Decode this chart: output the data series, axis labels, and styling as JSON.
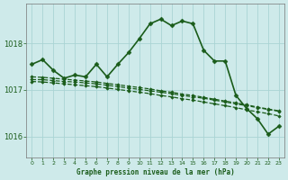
{
  "xlabel": "Graphe pression niveau de la mer (hPa)",
  "bg_color": "#ceeaea",
  "grid_color": "#aad4d4",
  "line_color": "#1a5c1a",
  "xlim": [
    -0.5,
    23.5
  ],
  "ylim": [
    1015.55,
    1018.85
  ],
  "yticks": [
    1016,
    1017,
    1018
  ],
  "xticks": [
    0,
    1,
    2,
    3,
    4,
    5,
    6,
    7,
    8,
    9,
    10,
    11,
    12,
    13,
    14,
    15,
    16,
    17,
    18,
    19,
    20,
    21,
    22,
    23
  ],
  "series": [
    {
      "x": [
        0,
        1,
        2,
        3,
        4,
        5,
        6,
        7,
        8,
        9,
        10,
        11,
        12,
        13,
        14,
        15,
        16,
        17,
        18,
        19,
        20,
        21,
        22,
        23
      ],
      "y": [
        1017.55,
        1017.65,
        1017.42,
        1017.25,
        1017.32,
        1017.28,
        1017.55,
        1017.28,
        1017.55,
        1017.8,
        1018.1,
        1018.42,
        1018.52,
        1018.38,
        1018.48,
        1018.42,
        1017.85,
        1017.62,
        1017.62,
        1016.88,
        1016.6,
        1016.38,
        1016.05,
        1016.22
      ],
      "marker": "D",
      "markersize": 2.5,
      "linewidth": 1.2,
      "linestyle": "-",
      "zorder": 5
    },
    {
      "x": [
        0,
        1,
        2,
        3,
        4,
        5,
        6,
        7,
        8,
        9,
        10,
        11,
        12,
        13,
        14,
        15,
        16,
        17,
        18,
        19,
        20,
        21,
        22,
        23
      ],
      "y": [
        1017.22,
        1017.22,
        1017.2,
        1017.18,
        1017.17,
        1017.15,
        1017.13,
        1017.1,
        1017.07,
        1017.04,
        1017.01,
        1016.98,
        1016.95,
        1016.92,
        1016.88,
        1016.85,
        1016.82,
        1016.78,
        1016.74,
        1016.7,
        1016.66,
        1016.62,
        1016.58,
        1016.54
      ],
      "marker": "D",
      "markersize": 1.8,
      "linewidth": 0.9,
      "linestyle": "--",
      "zorder": 3
    },
    {
      "x": [
        0,
        1,
        2,
        3,
        4,
        5,
        6,
        7,
        8,
        9,
        10,
        11,
        12,
        13,
        14,
        15,
        16,
        17,
        18,
        19,
        20,
        21,
        22,
        23
      ],
      "y": [
        1017.28,
        1017.27,
        1017.25,
        1017.23,
        1017.21,
        1017.19,
        1017.17,
        1017.14,
        1017.11,
        1017.08,
        1017.05,
        1017.02,
        1016.98,
        1016.95,
        1016.91,
        1016.88,
        1016.84,
        1016.8,
        1016.76,
        1016.72,
        1016.68,
        1016.63,
        1016.59,
        1016.55
      ],
      "marker": "D",
      "markersize": 1.8,
      "linewidth": 0.9,
      "linestyle": "--",
      "zorder": 3
    },
    {
      "x": [
        0,
        1,
        2,
        3,
        4,
        5,
        6,
        7,
        8,
        9,
        10,
        11,
        12,
        13,
        14,
        15,
        16,
        17,
        18,
        19,
        20,
        21,
        22,
        23
      ],
      "y": [
        1017.18,
        1017.17,
        1017.15,
        1017.13,
        1017.11,
        1017.09,
        1017.07,
        1017.04,
        1017.01,
        1016.98,
        1016.95,
        1016.92,
        1016.88,
        1016.85,
        1016.81,
        1016.78,
        1016.74,
        1016.7,
        1016.66,
        1016.62,
        1016.57,
        1016.53,
        1016.49,
        1016.44
      ],
      "marker": "D",
      "markersize": 1.8,
      "linewidth": 0.9,
      "linestyle": "--",
      "zorder": 3
    }
  ]
}
